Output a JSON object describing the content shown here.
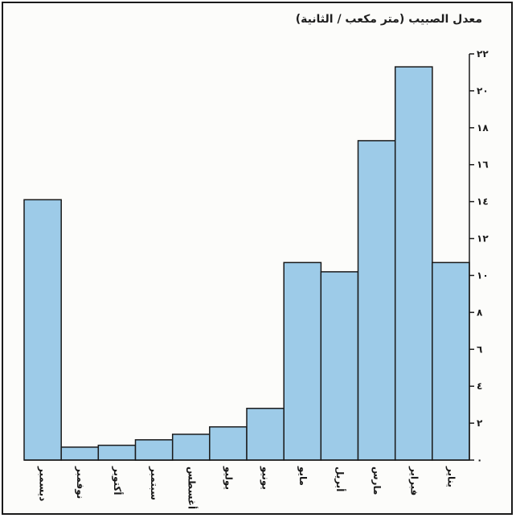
{
  "chart_data": {
    "type": "bar",
    "title": "معدل الصبيب (متر مكعب / الثانية)",
    "categories": [
      "ديسمبر",
      "نوفمبر",
      "أكتوبر",
      "سبتمبر",
      "أغسطس",
      "يوليو",
      "يونيو",
      "مايو",
      "أبريل",
      "مارس",
      "فبراير",
      "يناير"
    ],
    "values": [
      14.1,
      0.7,
      0.8,
      1.1,
      1.4,
      1.8,
      2.8,
      10.7,
      10.2,
      17.3,
      21.3,
      10.7
    ],
    "yticks": [
      0,
      2,
      4,
      6,
      8,
      10,
      12,
      14,
      16,
      18,
      20,
      22
    ],
    "ytick_labels": [
      "٠",
      "٢",
      "٤",
      "٦",
      "٨",
      "١٠",
      "١٢",
      "١٤",
      "١٦",
      "١٨",
      "٢٠",
      "٢٢"
    ],
    "ylim": [
      0,
      22
    ],
    "y_axis_side": "right",
    "grid": false,
    "bar_color": "#9dcbe8",
    "bar_edge_color": "#1a1a1a"
  }
}
